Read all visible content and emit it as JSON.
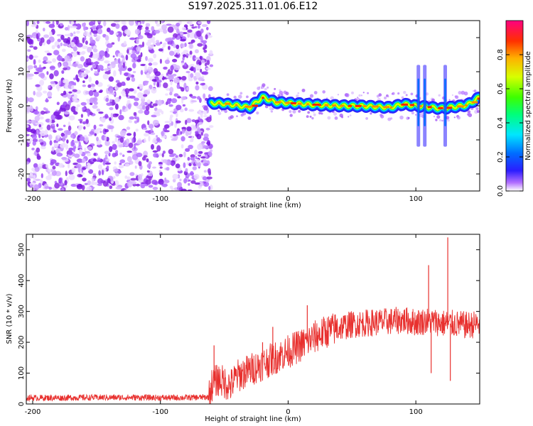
{
  "title": "S197.2025.311.01.06.E12",
  "colors": {
    "noise": "#8a2be2",
    "snr_line": "#e8302e",
    "frame": "#000000"
  },
  "chart_data": [
    {
      "type": "heatmap",
      "title": "S197.2025.311.01.06.E12",
      "xlabel": "Height of straight line (km)",
      "ylabel": "Frequency (Hz)",
      "xlim": [
        -205,
        150
      ],
      "ylim": [
        -25,
        25
      ],
      "xticks": [
        -200,
        -100,
        0,
        100
      ],
      "xtick_labels": [
        "-200",
        "-100",
        "0",
        "100"
      ],
      "yticks": [
        -20,
        -10,
        0,
        10,
        20
      ],
      "ytick_labels": [
        "-20",
        "-10",
        "0",
        "10",
        "20"
      ],
      "noise_region_km": [
        -205,
        -60
      ],
      "signal_start_km": -60,
      "signal_center_hz": [
        {
          "x": -60,
          "y": 0.8
        },
        {
          "x": -50,
          "y": 0.6
        },
        {
          "x": -40,
          "y": 0.1
        },
        {
          "x": -30,
          "y": -0.5
        },
        {
          "x": -20,
          "y": 2.5
        },
        {
          "x": -15,
          "y": 1.8
        },
        {
          "x": -10,
          "y": 1.0
        },
        {
          "x": 0,
          "y": 0.8
        },
        {
          "x": 20,
          "y": 0.3
        },
        {
          "x": 40,
          "y": 0.0
        },
        {
          "x": 60,
          "y": -0.1
        },
        {
          "x": 80,
          "y": -0.5
        },
        {
          "x": 90,
          "y": 0.5
        },
        {
          "x": 100,
          "y": 0.0
        },
        {
          "x": 120,
          "y": -0.8
        },
        {
          "x": 140,
          "y": 0.2
        },
        {
          "x": 150,
          "y": 2.5
        }
      ],
      "vertical_streaks_km": [
        102,
        107,
        123
      ],
      "colorbar": {
        "label": "Normalized spectral amplitude",
        "range": [
          0.0,
          1.0
        ],
        "ticks": [
          0.0,
          0.2,
          0.4,
          0.6,
          0.8
        ],
        "tick_labels": [
          "0.0",
          "0.2",
          "0.4",
          "0.6",
          "0.8"
        ]
      }
    },
    {
      "type": "line",
      "xlabel": "Height of straight line (km)",
      "ylabel": "SNR (10 * v/v)",
      "xlim": [
        -205,
        150
      ],
      "ylim": [
        0,
        550
      ],
      "xticks": [
        -200,
        -100,
        0,
        100
      ],
      "xtick_labels": [
        "-200",
        "-100",
        "0",
        "100"
      ],
      "yticks": [
        0,
        100,
        200,
        300,
        400,
        500
      ],
      "ytick_labels": [
        "0",
        "100",
        "200",
        "300",
        "400",
        "500"
      ],
      "series": [
        {
          "name": "SNR",
          "x": [
            -205,
            -180,
            -150,
            -120,
            -90,
            -62,
            -60,
            -55,
            -50,
            -45,
            -40,
            -30,
            -20,
            -10,
            0,
            10,
            20,
            30,
            40,
            50,
            60,
            70,
            80,
            90,
            100,
            110,
            120,
            130,
            140,
            150
          ],
          "values": [
            20,
            20,
            21,
            21,
            20,
            22,
            60,
            80,
            70,
            60,
            90,
            110,
            130,
            150,
            170,
            190,
            215,
            235,
            248,
            258,
            262,
            265,
            268,
            272,
            265,
            270,
            262,
            260,
            255,
            260
          ],
          "spikes": [
            {
              "x": -58,
              "y": 190
            },
            {
              "x": -20,
              "y": 200
            },
            {
              "x": -12,
              "y": 250
            },
            {
              "x": 15,
              "y": 320
            },
            {
              "x": 110,
              "y": 450
            },
            {
              "x": 112,
              "y": 100
            },
            {
              "x": 125,
              "y": 540
            },
            {
              "x": 127,
              "y": 75
            }
          ]
        }
      ]
    }
  ]
}
